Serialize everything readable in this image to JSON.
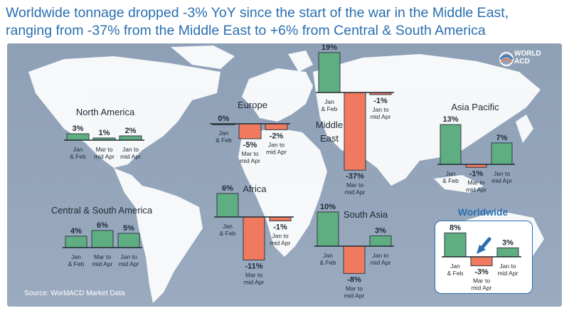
{
  "headline": {
    "line1": "Worldwide tonnage dropped -3% YoY since the start of the war in the Middle East,",
    "line2": "ranging from -37% from the Middle East to +6% from Central & South America"
  },
  "logo": {
    "line1": "WORLD",
    "line2": "ACD"
  },
  "source": "Source: WorldACD Market Data",
  "colors": {
    "positive": "#5fae82",
    "negative": "#f07a5f",
    "accent": "#2a6fb0",
    "bar_outline": "#2f3b45"
  },
  "chart_data": [
    {
      "type": "bar",
      "title": "North America",
      "categories": [
        [
          "Jan",
          "& Feb"
        ],
        [
          "Mar to",
          "mid Apr"
        ],
        [
          "Jan to",
          "mid Apr"
        ]
      ],
      "values": [
        3,
        1,
        2
      ],
      "labels": [
        "3%",
        "1%",
        "2%"
      ]
    },
    {
      "type": "bar",
      "title": "Europe",
      "categories": [
        [
          "Jan",
          "& Feb"
        ],
        [
          "Mar to",
          "mid Apr"
        ],
        [
          "Jan to",
          "mid Apr"
        ]
      ],
      "values": [
        0,
        -5,
        -2
      ],
      "labels": [
        "0%",
        "-5%",
        "-2%"
      ]
    },
    {
      "type": "bar",
      "title": "Middle East",
      "categories": [
        [
          "Jan",
          "& Feb"
        ],
        [
          "Mar to",
          "mid Apr"
        ],
        [
          "Jan to",
          "mid Apr"
        ]
      ],
      "values": [
        19,
        -37,
        -1
      ],
      "labels": [
        "19%",
        "-37%",
        "-1%"
      ]
    },
    {
      "type": "bar",
      "title": "Asia Pacific",
      "categories": [
        [
          "Jan",
          "& Feb"
        ],
        [
          "Mar to",
          "mid Apr"
        ],
        [
          "Jan to",
          "mid Apr"
        ]
      ],
      "values": [
        13,
        -1,
        7
      ],
      "labels": [
        "13%",
        "-1%",
        "7%"
      ]
    },
    {
      "type": "bar",
      "title": "Central & South America",
      "categories": [
        [
          "Jan",
          "& Feb"
        ],
        [
          "Mar to",
          "mid Apr"
        ],
        [
          "Jan to",
          "mid Apr"
        ]
      ],
      "values": [
        4,
        6,
        5
      ],
      "labels": [
        "4%",
        "6%",
        "5%"
      ]
    },
    {
      "type": "bar",
      "title": "Africa",
      "categories": [
        [
          "Jan",
          "& Feb"
        ],
        [
          "Mar to",
          "mid Apr"
        ],
        [
          "Jan to",
          "mid Apr"
        ]
      ],
      "values": [
        6,
        -11,
        -1
      ],
      "labels": [
        "6%",
        "-11%",
        "-1%"
      ]
    },
    {
      "type": "bar",
      "title": "South Asia",
      "categories": [
        [
          "Jan",
          "& Feb"
        ],
        [
          "Mar to",
          "mid Apr"
        ],
        [
          "Jan to",
          "mid Apr"
        ]
      ],
      "values": [
        10,
        -8,
        3
      ],
      "labels": [
        "10%",
        "-8%",
        "3%"
      ]
    },
    {
      "type": "bar",
      "title": "Worldwide",
      "categories": [
        [
          "Jan",
          "& Feb"
        ],
        [
          "Mar to",
          "mid Apr"
        ],
        [
          "Jan to",
          "mid Apr"
        ]
      ],
      "values": [
        8,
        -3,
        3
      ],
      "labels": [
        "8%",
        "-3%",
        "3%"
      ]
    }
  ]
}
